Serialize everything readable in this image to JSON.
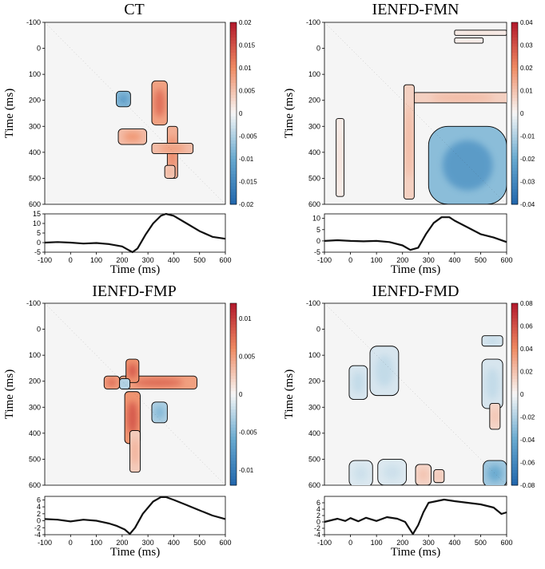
{
  "figure": {
    "description_free": true
  },
  "colors": {
    "positive": "#b2182b",
    "mid_positive": "#ef8a62",
    "neutral": "#f7f7f7",
    "mid_negative": "#67a9cf",
    "negative": "#2166ac",
    "background": "#f5f5f5",
    "line": "#111111"
  },
  "chart_data": [
    {
      "type": "heatmap",
      "title": "CT",
      "xlabel": "Time (ms)",
      "ylabel": "Time (ms)",
      "xlim": [
        -100,
        600
      ],
      "ylim": [
        -100,
        600
      ],
      "xticks": [
        -100,
        0,
        100,
        200,
        300,
        400,
        500,
        600
      ],
      "yticks": [
        -100,
        0,
        100,
        200,
        300,
        400,
        500,
        600
      ],
      "colorbar": {
        "min": -0.02,
        "max": 0.02,
        "ticks": [
          0.02,
          0.015,
          0.01,
          0.005,
          0,
          -0.005,
          -0.01,
          -0.015,
          -0.02
        ],
        "labels": [
          "0.02",
          "0.015",
          "0.01",
          "0.005",
          "0",
          "-0.005",
          "-0.01",
          "-0.015",
          "-0.02"
        ]
      },
      "clusters": [
        {
          "x": 240,
          "y": 340,
          "w": 110,
          "h": 60,
          "v": 0.009
        },
        {
          "x": 345,
          "y": 210,
          "w": 60,
          "h": 170,
          "v": 0.013
        },
        {
          "x": 395,
          "y": 400,
          "w": 40,
          "h": 200,
          "v": 0.011
        },
        {
          "x": 395,
          "y": 385,
          "w": 160,
          "h": 40,
          "v": 0.009
        },
        {
          "x": 385,
          "y": 475,
          "w": 40,
          "h": 50,
          "v": 0.007
        },
        {
          "x": 205,
          "y": 195,
          "w": 55,
          "h": 60,
          "v": -0.013
        }
      ],
      "erp": {
        "ylim": [
          -5,
          15
        ],
        "yticks": [
          -5,
          0,
          5,
          10,
          15
        ],
        "x": [
          -100,
          -50,
          0,
          50,
          100,
          150,
          200,
          220,
          240,
          260,
          290,
          320,
          350,
          370,
          400,
          450,
          500,
          550,
          600
        ],
        "y": [
          0,
          0.3,
          0,
          -0.5,
          -0.2,
          -0.8,
          -2,
          -3.5,
          -5,
          -3,
          4,
          10,
          14,
          15,
          14,
          10,
          6,
          3,
          2
        ],
        "xlabel": "Time (ms)",
        "xticks": [
          -100,
          0,
          100,
          200,
          300,
          400,
          500,
          600
        ]
      }
    },
    {
      "type": "heatmap",
      "title": "IENFD-FMN",
      "xlabel": "Time (ms)",
      "ylabel": "Time (ms)",
      "xlim": [
        -100,
        600
      ],
      "ylim": [
        -100,
        600
      ],
      "xticks": [
        -100,
        0,
        100,
        200,
        300,
        400,
        500,
        600
      ],
      "yticks": [
        -100,
        0,
        100,
        200,
        300,
        400,
        500,
        600
      ],
      "colorbar": {
        "min": -0.04,
        "max": 0.04,
        "ticks": [
          0.04,
          0.03,
          0.02,
          0.01,
          0,
          -0.01,
          -0.02,
          -0.03,
          -0.04
        ],
        "labels": [
          "0.04",
          "0.03",
          "0.02",
          "0.01",
          "0",
          "-0.01",
          "-0.02",
          "-0.03",
          "-0.04"
        ]
      },
      "clusters": [
        {
          "x": 450,
          "y": 450,
          "w": 300,
          "h": 300,
          "v": -0.025
        },
        {
          "x": 430,
          "y": 190,
          "w": 380,
          "h": 40,
          "v": 0.012
        },
        {
          "x": 225,
          "y": 360,
          "w": 40,
          "h": 440,
          "v": 0.012
        },
        {
          "x": -40,
          "y": 420,
          "w": 30,
          "h": 300,
          "v": 0.004
        },
        {
          "x": 500,
          "y": -60,
          "w": 200,
          "h": 20,
          "v": 0.004
        },
        {
          "x": 455,
          "y": -30,
          "w": 110,
          "h": 20,
          "v": 0.003
        }
      ],
      "erp": {
        "ylim": [
          -5,
          12
        ],
        "yticks": [
          -5,
          0,
          5,
          10
        ],
        "x": [
          -100,
          -50,
          0,
          50,
          100,
          150,
          200,
          230,
          260,
          290,
          320,
          350,
          380,
          400,
          450,
          500,
          550,
          600
        ],
        "y": [
          0,
          0.3,
          0,
          -0.2,
          0,
          -0.5,
          -2,
          -4,
          -3,
          3,
          8,
          10.5,
          10.5,
          9,
          6,
          3,
          1.5,
          -0.5
        ],
        "xlabel": "Time (ms)",
        "xticks": [
          -100,
          0,
          100,
          200,
          300,
          400,
          500,
          600
        ]
      }
    },
    {
      "type": "heatmap",
      "title": "IENFD-FMP",
      "xlabel": "Time (ms)",
      "ylabel": "Time (ms)",
      "xlim": [
        -100,
        600
      ],
      "ylim": [
        -100,
        600
      ],
      "xticks": [
        -100,
        0,
        100,
        200,
        300,
        400,
        500,
        600
      ],
      "yticks": [
        -100,
        0,
        100,
        200,
        300,
        400,
        500,
        600
      ],
      "colorbar": {
        "min": -0.012,
        "max": 0.012,
        "ticks": [
          0.01,
          0.005,
          0,
          -0.005,
          -0.01
        ],
        "labels": [
          "0.01",
          "0.005",
          "0",
          "-0.005",
          "-0.01"
        ]
      },
      "clusters": [
        {
          "x": 240,
          "y": 340,
          "w": 60,
          "h": 200,
          "v": 0.009
        },
        {
          "x": 340,
          "y": 205,
          "w": 300,
          "h": 50,
          "v": 0.008
        },
        {
          "x": 240,
          "y": 160,
          "w": 50,
          "h": 90,
          "v": 0.009
        },
        {
          "x": 160,
          "y": 205,
          "w": 60,
          "h": 50,
          "v": 0.008
        },
        {
          "x": 250,
          "y": 470,
          "w": 40,
          "h": 160,
          "v": 0.004
        },
        {
          "x": 345,
          "y": 320,
          "w": 60,
          "h": 80,
          "v": -0.005
        },
        {
          "x": 210,
          "y": 210,
          "w": 40,
          "h": 40,
          "v": -0.004
        }
      ],
      "erp": {
        "ylim": [
          -4,
          7
        ],
        "yticks": [
          -4,
          -2,
          0,
          2,
          4,
          6
        ],
        "x": [
          -100,
          -50,
          0,
          50,
          100,
          150,
          180,
          210,
          230,
          250,
          280,
          320,
          350,
          370,
          400,
          450,
          500,
          550,
          600
        ],
        "y": [
          0.5,
          0.3,
          -0.2,
          0.3,
          0,
          -0.8,
          -1.5,
          -2.5,
          -3.8,
          -2,
          2,
          5.5,
          6.8,
          6.8,
          6,
          4.5,
          3,
          1.5,
          0.5
        ],
        "xlabel": "Time (ms)",
        "xticks": [
          -100,
          0,
          100,
          200,
          300,
          400,
          500,
          600
        ]
      }
    },
    {
      "type": "heatmap",
      "title": "IENFD-FMD",
      "xlabel": "Time (ms)",
      "ylabel": "Time (ms)",
      "xlim": [
        -100,
        600
      ],
      "ylim": [
        -100,
        600
      ],
      "xticks": [
        -100,
        0,
        100,
        200,
        300,
        400,
        500,
        600
      ],
      "yticks": [
        -100,
        0,
        100,
        200,
        300,
        400,
        500,
        600
      ],
      "colorbar": {
        "min": -0.08,
        "max": 0.08,
        "ticks": [
          0.08,
          0.06,
          0.04,
          0.02,
          0,
          -0.02,
          -0.04,
          -0.06,
          -0.08
        ],
        "labels": [
          "0.08",
          "0.06",
          "0.04",
          "0.02",
          "0",
          "-0.02",
          "-0.04",
          "-0.06",
          "-0.08"
        ]
      },
      "clusters": [
        {
          "x": 30,
          "y": 205,
          "w": 70,
          "h": 130,
          "v": -0.015
        },
        {
          "x": 130,
          "y": 160,
          "w": 110,
          "h": 190,
          "v": -0.015
        },
        {
          "x": 545,
          "y": 210,
          "w": 80,
          "h": 190,
          "v": -0.015
        },
        {
          "x": 40,
          "y": 555,
          "w": 90,
          "h": 100,
          "v": -0.012
        },
        {
          "x": 160,
          "y": 550,
          "w": 110,
          "h": 100,
          "v": -0.012
        },
        {
          "x": 555,
          "y": 555,
          "w": 90,
          "h": 100,
          "v": -0.04
        },
        {
          "x": 280,
          "y": 560,
          "w": 60,
          "h": 80,
          "v": 0.02
        },
        {
          "x": 555,
          "y": 335,
          "w": 40,
          "h": 100,
          "v": 0.02
        },
        {
          "x": 340,
          "y": 565,
          "w": 40,
          "h": 50,
          "v": 0.02
        },
        {
          "x": 545,
          "y": 45,
          "w": 80,
          "h": 40,
          "v": -0.015
        }
      ],
      "erp": {
        "ylim": [
          -4,
          8
        ],
        "yticks": [
          -4,
          -2,
          0,
          2,
          4,
          6
        ],
        "x": [
          -100,
          -50,
          -20,
          0,
          30,
          60,
          100,
          140,
          180,
          210,
          240,
          260,
          280,
          300,
          330,
          360,
          400,
          450,
          500,
          550,
          580,
          600
        ],
        "y": [
          0,
          1,
          0.3,
          1.2,
          0.2,
          1.3,
          0.3,
          1.5,
          1,
          0,
          -3.8,
          -1,
          3,
          6,
          6.5,
          7,
          6.5,
          6,
          5.5,
          4.5,
          2.5,
          3
        ],
        "xlabel": "Time (ms)",
        "xticks": [
          -100,
          0,
          100,
          200,
          300,
          400,
          500,
          600
        ]
      }
    }
  ]
}
